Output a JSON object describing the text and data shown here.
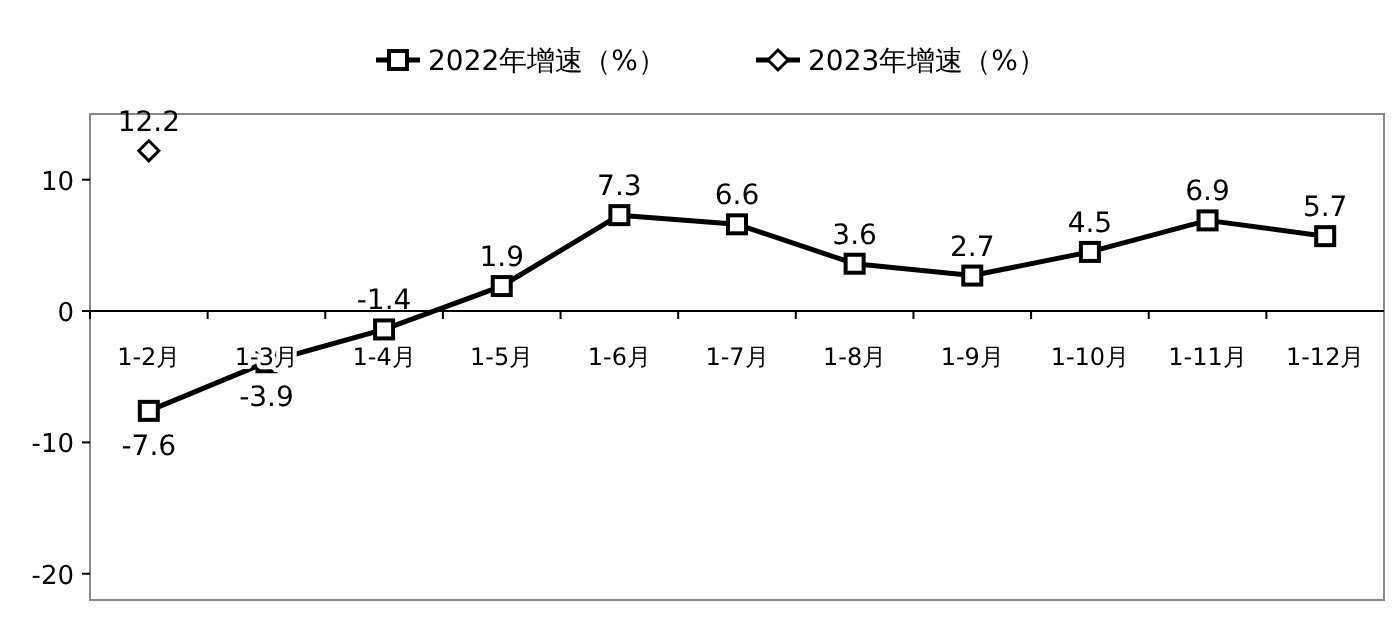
{
  "chart_data": {
    "type": "line",
    "categories": [
      "1-2月",
      "1-3月",
      "1-4月",
      "1-5月",
      "1-6月",
      "1-7月",
      "1-8月",
      "1-9月",
      "1-10月",
      "1-11月",
      "1-12月"
    ],
    "series": [
      {
        "name": "2022年增速（%）",
        "color": "#000000",
        "marker": "square",
        "values": [
          -7.6,
          -3.9,
          -1.4,
          1.9,
          7.3,
          6.6,
          3.6,
          2.7,
          4.5,
          6.9,
          5.7
        ]
      },
      {
        "name": "2023年增速（%）",
        "color": "#000000",
        "marker": "diamond",
        "values": [
          12.2,
          null,
          null,
          null,
          null,
          null,
          null,
          null,
          null,
          null,
          null
        ]
      }
    ],
    "ylim": [
      -22,
      15
    ],
    "yticks": [
      -20,
      -10,
      0,
      10
    ],
    "data_labels": true,
    "legend": "top",
    "grid": false,
    "line_style": "solid"
  }
}
